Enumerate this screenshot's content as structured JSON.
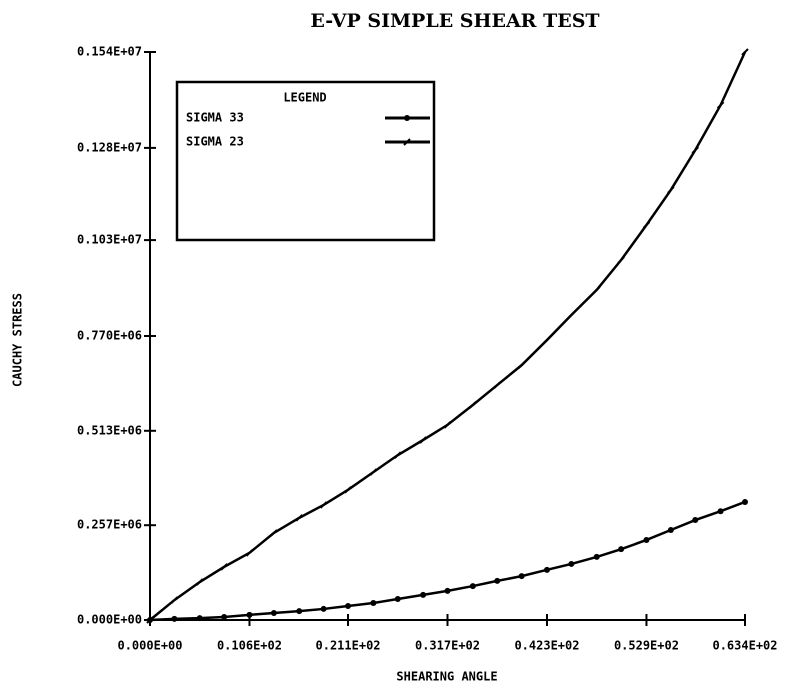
{
  "chart_data": {
    "type": "line",
    "title": "E-VP SIMPLE SHEAR TEST",
    "x_label": "SHEARING ANGLE",
    "y_label": "CAUCHY STRESS",
    "legend_title": "LEGEND",
    "legend": "upper left",
    "x": [
      0,
      2.6,
      5.3,
      7.9,
      10.6,
      13.2,
      15.9,
      18.5,
      21.1,
      23.8,
      26.4,
      29.1,
      31.7,
      34.4,
      37.0,
      39.6,
      42.3,
      44.9,
      47.6,
      50.2,
      52.9,
      55.5,
      58.1,
      60.8,
      63.4
    ],
    "series": [
      {
        "name": "SIGMA 33",
        "color": "#000000",
        "marker": "circle",
        "values": [
          0,
          3000,
          5000,
          8000,
          14000,
          19000,
          24000,
          30000,
          38000,
          46000,
          57000,
          68000,
          79000,
          92000,
          106000,
          119000,
          136000,
          152000,
          171000,
          192000,
          217000,
          244000,
          271000,
          295000,
          320000
        ]
      },
      {
        "name": "SIGMA 23",
        "color": "#000000",
        "marker": "tick",
        "values": [
          0,
          54000,
          103000,
          144000,
          182000,
          236000,
          277000,
          312000,
          353000,
          401000,
          447000,
          488000,
          529000,
          583000,
          637000,
          691000,
          759000,
          827000,
          895000,
          976000,
          1071000,
          1166000,
          1274000,
          1396000,
          1540000
        ]
      }
    ],
    "xlim": [
      0,
      63.4
    ],
    "xticks": [
      {
        "value": 0,
        "label": "0.000E+00"
      },
      {
        "value": 10.6,
        "label": "0.106E+02"
      },
      {
        "value": 21.1,
        "label": "0.211E+02"
      },
      {
        "value": 31.7,
        "label": "0.317E+02"
      },
      {
        "value": 42.3,
        "label": "0.423E+02"
      },
      {
        "value": 52.9,
        "label": "0.529E+02"
      },
      {
        "value": 63.4,
        "label": "0.634E+02"
      }
    ],
    "ylim": [
      0,
      1540000
    ],
    "yticks": [
      {
        "value": 0,
        "label": "0.000E+00"
      },
      {
        "value": 257000,
        "label": "0.257E+06"
      },
      {
        "value": 513000,
        "label": "0.513E+06"
      },
      {
        "value": 770000,
        "label": "0.770E+06"
      },
      {
        "value": 1030000,
        "label": "0.103E+07"
      },
      {
        "value": 1280000,
        "label": "0.128E+07"
      },
      {
        "value": 1540000,
        "label": "0.154E+07"
      }
    ]
  }
}
